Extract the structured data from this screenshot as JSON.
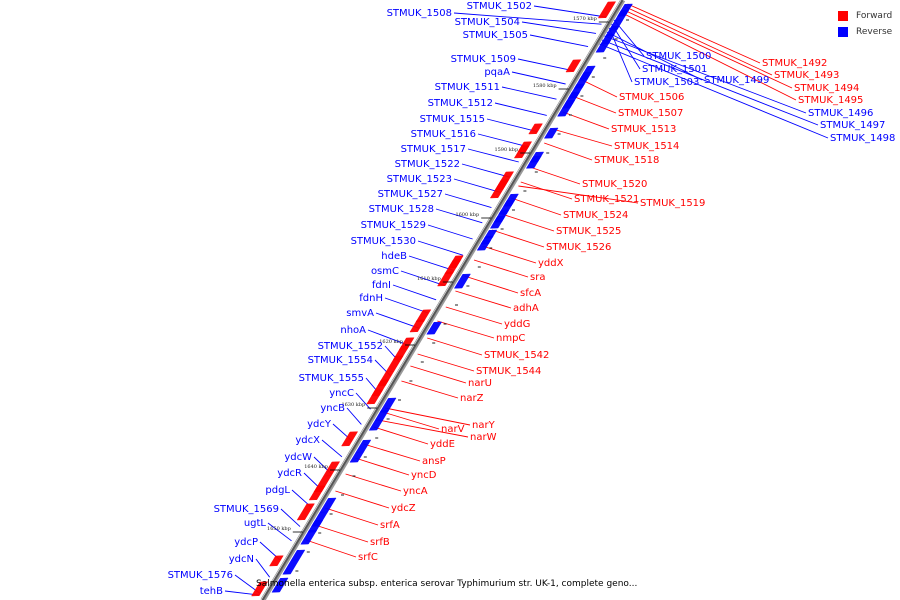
{
  "legend": {
    "forward_label": "Forward",
    "reverse_label": "Reverse",
    "forward_color": "#ff0000",
    "reverse_color": "#0000ff"
  },
  "caption": "Salmonella enterica subsp. enterica serovar Typhimurium str. UK-1, complete geno...",
  "ticks": [
    "1570 kbp",
    "1580 kbp",
    "1590 kbp",
    "1600 kbp",
    "1610 kbp",
    "1620 kbp",
    "1630 kbp",
    "1640 kbp",
    "1650 kbp"
  ],
  "reverse_genes": [
    "STMUK_1502",
    "STMUK_1508",
    "STMUK_1504",
    "STMUK_1505",
    "STMUK_1509",
    "pqaA",
    "STMUK_1511",
    "STMUK_1512",
    "STMUK_1515",
    "STMUK_1516",
    "STMUK_1517",
    "STMUK_1522",
    "STMUK_1523",
    "STMUK_1527",
    "STMUK_1528",
    "STMUK_1529",
    "STMUK_1530",
    "hdeB",
    "osmC",
    "fdnI",
    "fdnH",
    "smvA",
    "nhoA",
    "STMUK_1552",
    "STMUK_1554",
    "STMUK_1555",
    "yncC",
    "yncB",
    "ydcY",
    "ydcX",
    "ydcW",
    "ydcR",
    "pdgL",
    "STMUK_1569",
    "ugtL",
    "ydcP",
    "ydcN",
    "STMUK_1576",
    "tehB"
  ],
  "reverse_genes_right": [
    "STMUK_1500",
    "STMUK_1501",
    "STMUK_1503",
    "STMUK_1499",
    "STMUK_1496",
    "STMUK_1497",
    "STMUK_1498"
  ],
  "forward_genes": [
    "STMUK_1492",
    "STMUK_1493",
    "STMUK_1494",
    "STMUK_1495",
    "STMUK_1506",
    "STMUK_1507",
    "STMUK_1513",
    "STMUK_1514",
    "STMUK_1518",
    "STMUK_1520",
    "STMUK_1521",
    "STMUK_1519",
    "STMUK_1524",
    "STMUK_1525",
    "STMUK_1526",
    "yddX",
    "sra",
    "sfcA",
    "adhA",
    "yddG",
    "nmpC",
    "STMUK_1542",
    "STMUK_1544",
    "narU",
    "narZ",
    "narY",
    "narV",
    "narW",
    "yddE",
    "ansP",
    "yncD",
    "yncA",
    "ydcZ",
    "srfA",
    "srfB",
    "srfC"
  ]
}
